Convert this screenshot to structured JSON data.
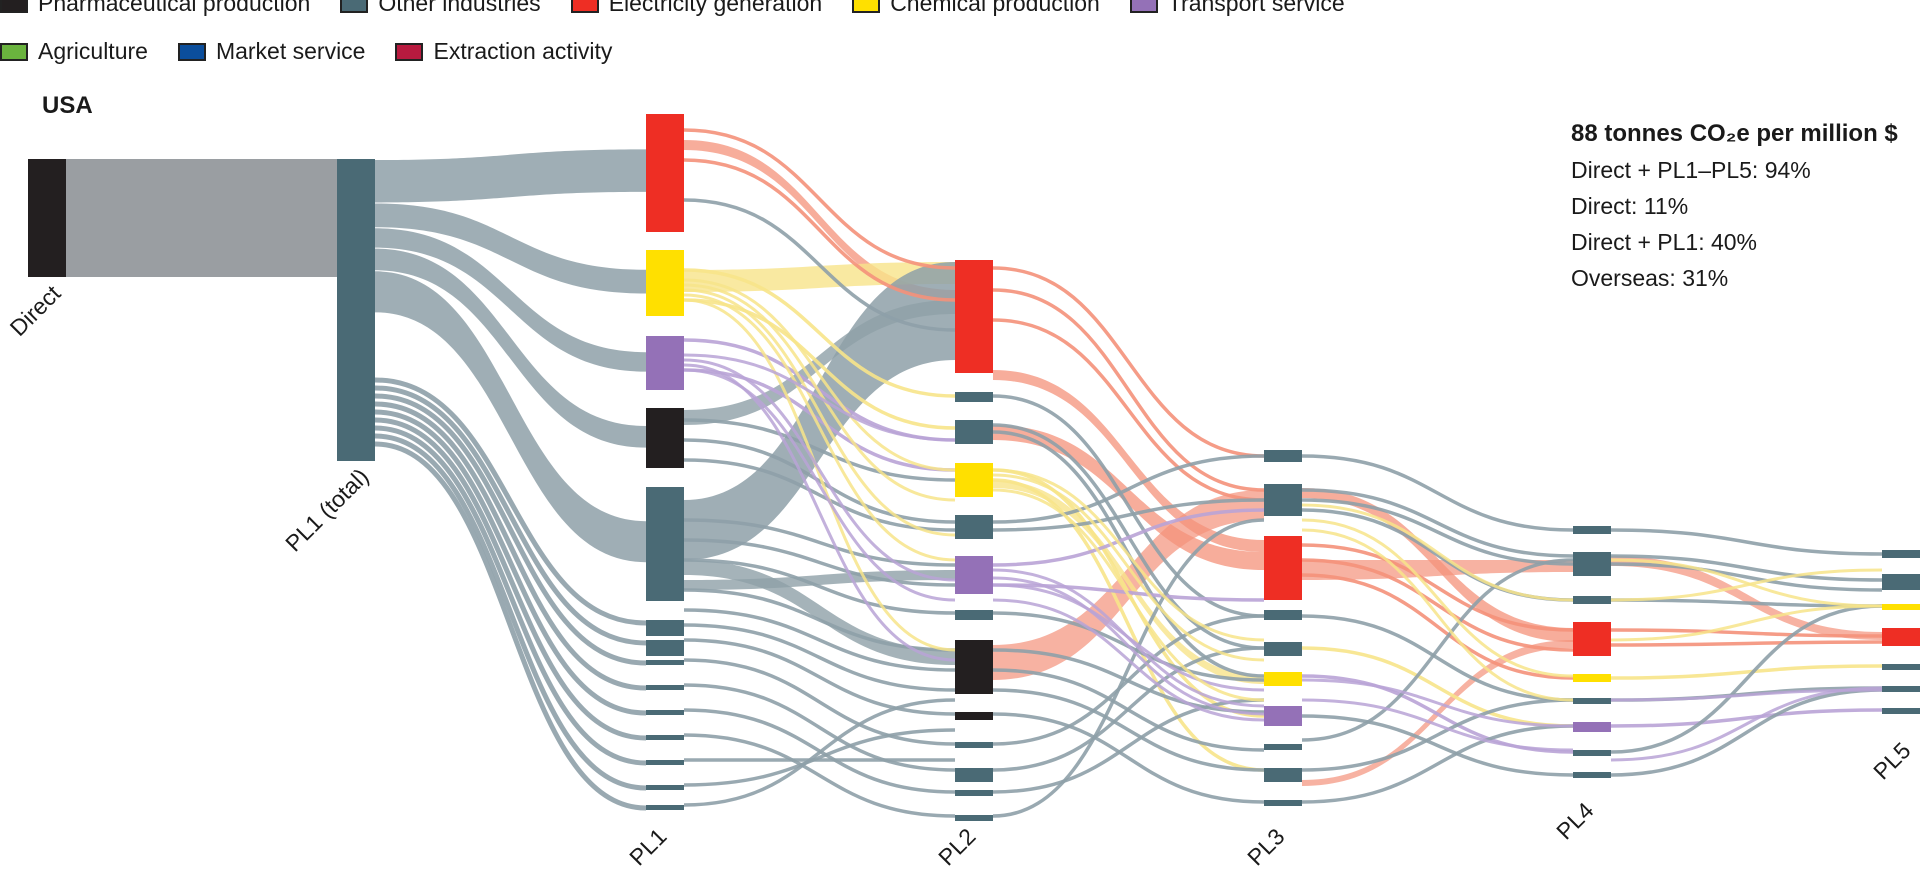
{
  "legend": {
    "items": [
      {
        "label": "Pharmaceutical production",
        "color": "#231f20"
      },
      {
        "label": "Other industries",
        "color": "#4a6a75"
      },
      {
        "label": "Electricity generation",
        "color": "#ee2e24"
      },
      {
        "label": "Chemical production",
        "color": "#ffe000"
      },
      {
        "label": "Transport service",
        "color": "#9471b7"
      },
      {
        "label": "Agriculture",
        "color": "#6ab33e"
      },
      {
        "label": "Market service",
        "color": "#0b4e9c"
      },
      {
        "label": "Extraction activity",
        "color": "#b81a3f"
      }
    ]
  },
  "country": "USA",
  "stats": {
    "headline": "88 tonnes CO₂e per million $",
    "lines": [
      "Direct + PL1–PL5: 94%",
      "Direct: 11%",
      "Direct + PL1: 40%",
      "Overseas: 31%"
    ]
  },
  "chart_data": {
    "type": "sankey",
    "stages": [
      "Direct",
      "PL1 (total)",
      "PL1",
      "PL2",
      "PL3",
      "PL4",
      "PL5"
    ],
    "total_intensity": "88 tonnes CO2e per million $",
    "shares_percent": {
      "direct_plus_pl1_pl5": 94,
      "direct": 11,
      "direct_plus_pl1": 40,
      "overseas": 31
    },
    "node_sectors_top_to_bottom": {
      "PL1": [
        "Electricity generation",
        "Chemical production",
        "Transport service",
        "Pharmaceutical production",
        "Other industries"
      ],
      "PL2": [
        "Electricity generation",
        "Other industries",
        "Other industries",
        "Chemical production",
        "Other industries",
        "Transport service",
        "Other industries",
        "Pharmaceutical production"
      ],
      "PL3": [
        "Other industries",
        "Other industries",
        "Electricity generation",
        "Other industries",
        "Chemical production",
        "Transport service",
        "Other industries"
      ],
      "PL4": [
        "Other industries",
        "Other industries",
        "Electricity generation",
        "Chemical production",
        "Transport service",
        "Other industries"
      ],
      "PL5": [
        "Other industries",
        "Other industries",
        "Chemical production",
        "Electricity generation",
        "Other industries"
      ]
    }
  }
}
